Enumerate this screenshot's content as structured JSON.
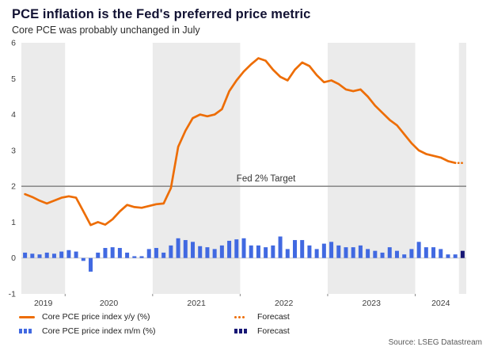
{
  "chart_data": {
    "type": "line+bar",
    "title": "PCE inflation is the Fed's preferred price metric",
    "subtitle": "Core PCE was probably unchanged in July",
    "source": "Source: LSEG Datastream",
    "frequency": "monthly",
    "x_start": "2019-07",
    "x_end_actual": "2024-06",
    "x_forecast": "2024-07",
    "x_labels": [
      "2019",
      "2020",
      "2021",
      "2022",
      "2023",
      "2024"
    ],
    "ylim": [
      -1,
      6
    ],
    "yticks": [
      -1,
      0,
      1,
      2,
      3,
      4,
      5,
      6
    ],
    "grid": "none",
    "year_shading": "alternate years shaded light gray, forecast month shaded",
    "legend_position": "bottom",
    "target_line": {
      "value": 2,
      "label": "Fed 2% Target"
    },
    "colors": {
      "line": "#ed6d05",
      "bar": "#4169e1",
      "forecast_bar": "#171775",
      "target": "#8c8c8c",
      "band": "#ebebeb"
    },
    "series": [
      {
        "name": "Core PCE price index y/y (%)",
        "type": "line",
        "color_key": "line",
        "values": [
          1.78,
          1.7,
          1.6,
          1.52,
          1.6,
          1.68,
          1.72,
          1.68,
          1.3,
          0.92,
          1.0,
          0.93,
          1.08,
          1.3,
          1.48,
          1.42,
          1.4,
          1.45,
          1.5,
          1.52,
          1.95,
          3.1,
          3.55,
          3.9,
          4.0,
          3.95,
          4.0,
          4.15,
          4.65,
          4.95,
          5.2,
          5.4,
          5.57,
          5.5,
          5.25,
          5.05,
          4.95,
          5.25,
          5.45,
          5.35,
          5.1,
          4.9,
          4.95,
          4.85,
          4.7,
          4.65,
          4.7,
          4.5,
          4.25,
          4.05,
          3.85,
          3.7,
          3.45,
          3.2,
          3.0,
          2.9,
          2.85,
          2.8,
          2.7,
          2.65
        ]
      },
      {
        "name": "Forecast",
        "type": "line-dotted",
        "color_key": "line",
        "values": [
          2.65
        ]
      },
      {
        "name": "Core PCE price index m/m (%)",
        "type": "bar",
        "color_key": "bar",
        "values": [
          0.15,
          0.12,
          0.1,
          0.15,
          0.12,
          0.18,
          0.22,
          0.18,
          -0.08,
          -0.38,
          0.15,
          0.28,
          0.3,
          0.28,
          0.15,
          0.05,
          0.05,
          0.25,
          0.28,
          0.15,
          0.35,
          0.55,
          0.5,
          0.45,
          0.33,
          0.3,
          0.25,
          0.35,
          0.48,
          0.52,
          0.55,
          0.35,
          0.35,
          0.3,
          0.35,
          0.6,
          0.25,
          0.5,
          0.5,
          0.35,
          0.25,
          0.4,
          0.45,
          0.35,
          0.3,
          0.3,
          0.35,
          0.25,
          0.2,
          0.15,
          0.3,
          0.2,
          0.1,
          0.25,
          0.45,
          0.3,
          0.3,
          0.25,
          0.1,
          0.1
        ]
      },
      {
        "name": "Forecast",
        "type": "bar",
        "color_key": "forecast_bar",
        "values": [
          0.2
        ]
      }
    ]
  }
}
